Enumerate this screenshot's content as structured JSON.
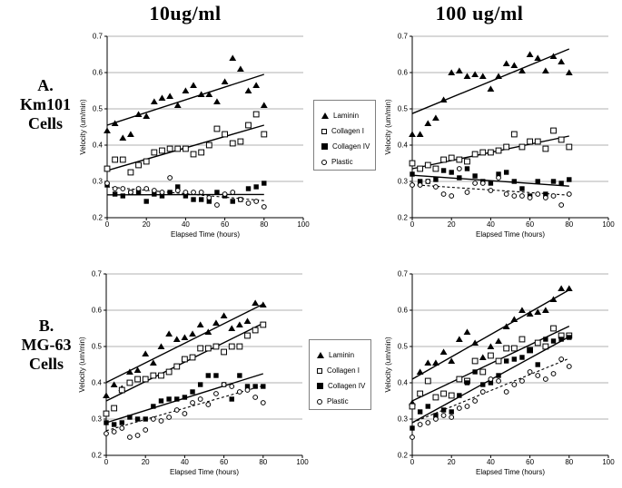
{
  "page": {
    "column_titles": [
      "10ug/ml",
      "100 ug/ml"
    ],
    "row_labels": [
      {
        "lines": [
          "A.",
          "Km101",
          "Cells"
        ]
      },
      {
        "lines": [
          "B.",
          "MG-63",
          "Cells"
        ]
      }
    ]
  },
  "legend": {
    "items": [
      {
        "label": "Laminin",
        "marker": "filled-triangle"
      },
      {
        "label": "Collagen I",
        "marker": "open-square"
      },
      {
        "label": "Collagen IV",
        "marker": "filled-square"
      },
      {
        "label": "Plastic",
        "marker": "open-circle"
      }
    ]
  },
  "chart_data": [
    {
      "id": "km101-10ugml",
      "type": "scatter",
      "cell_line": "Km101",
      "concentration": "10ug/ml",
      "xlabel": "Elapsed Time (hours)",
      "ylabel": "Velocity (um/min)",
      "xlim": [
        0,
        100
      ],
      "ylim": [
        0.2,
        0.7
      ],
      "xticks": [
        0,
        20,
        40,
        60,
        80,
        100
      ],
      "yticks": [
        0.2,
        0.3,
        0.4,
        0.5,
        0.6,
        0.7
      ],
      "x": [
        0,
        4,
        8,
        12,
        16,
        20,
        24,
        28,
        32,
        36,
        40,
        44,
        48,
        52,
        56,
        60,
        64,
        68,
        72,
        76,
        80
      ],
      "series": [
        {
          "name": "Laminin",
          "marker": "filled-triangle",
          "trend": {
            "style": "solid",
            "x": [
              0,
              80
            ],
            "y": [
              0.455,
              0.595
            ]
          },
          "values": [
            0.44,
            0.46,
            0.42,
            0.43,
            0.485,
            0.48,
            0.52,
            0.53,
            0.535,
            0.51,
            0.55,
            0.565,
            0.54,
            0.54,
            0.52,
            0.575,
            0.64,
            0.61,
            0.55,
            0.565,
            0.51
          ]
        },
        {
          "name": "Collagen I",
          "marker": "open-square",
          "trend": {
            "style": "solid",
            "x": [
              0,
              80
            ],
            "y": [
              0.33,
              0.455
            ]
          },
          "values": [
            0.335,
            0.36,
            0.36,
            0.325,
            0.345,
            0.355,
            0.38,
            0.385,
            0.39,
            0.39,
            0.39,
            0.375,
            0.38,
            0.4,
            0.445,
            0.43,
            0.405,
            0.41,
            0.455,
            0.485,
            0.43
          ]
        },
        {
          "name": "Collagen IV",
          "marker": "filled-square",
          "trend": {
            "style": "solid",
            "x": [
              0,
              80
            ],
            "y": [
              0.263,
              0.264
            ]
          },
          "values": [
            0.29,
            0.265,
            0.26,
            0.27,
            0.27,
            0.245,
            0.265,
            0.26,
            0.27,
            0.285,
            0.26,
            0.25,
            0.25,
            0.245,
            0.27,
            0.26,
            0.245,
            0.25,
            0.28,
            0.285,
            0.295
          ]
        },
        {
          "name": "Plastic",
          "marker": "open-circle",
          "trend": {
            "style": "dashed",
            "x": [
              0,
              80
            ],
            "y": [
              0.285,
              0.247
            ]
          },
          "values": [
            0.295,
            0.28,
            0.28,
            0.27,
            0.28,
            0.28,
            0.275,
            0.27,
            0.31,
            0.275,
            0.27,
            0.27,
            0.27,
            0.255,
            0.235,
            0.265,
            0.27,
            0.25,
            0.24,
            0.245,
            0.23
          ]
        }
      ]
    },
    {
      "id": "km101-100ugml",
      "type": "scatter",
      "cell_line": "Km101",
      "concentration": "100 ug/ml",
      "xlabel": "Elapsed Time (hours)",
      "ylabel": "Velocity (um/min)",
      "xlim": [
        0,
        100
      ],
      "ylim": [
        0.2,
        0.7
      ],
      "xticks": [
        0,
        20,
        40,
        60,
        80,
        100
      ],
      "yticks": [
        0.2,
        0.3,
        0.4,
        0.5,
        0.6,
        0.7
      ],
      "x": [
        0,
        4,
        8,
        12,
        16,
        20,
        24,
        28,
        32,
        36,
        40,
        44,
        48,
        52,
        56,
        60,
        64,
        68,
        72,
        76,
        80
      ],
      "series": [
        {
          "name": "Laminin",
          "marker": "filled-triangle",
          "trend": {
            "style": "solid",
            "x": [
              0,
              80
            ],
            "y": [
              0.487,
              0.665
            ]
          },
          "values": [
            0.43,
            0.43,
            0.46,
            0.475,
            0.525,
            0.6,
            0.605,
            0.59,
            0.595,
            0.59,
            0.555,
            0.59,
            0.625,
            0.62,
            0.605,
            0.65,
            0.64,
            0.605,
            0.645,
            0.63,
            0.6
          ]
        },
        {
          "name": "Collagen I",
          "marker": "open-square",
          "trend": {
            "style": "solid",
            "x": [
              0,
              80
            ],
            "y": [
              0.335,
              0.425
            ]
          },
          "values": [
            0.35,
            0.335,
            0.345,
            0.335,
            0.36,
            0.365,
            0.36,
            0.355,
            0.375,
            0.38,
            0.38,
            0.385,
            0.395,
            0.43,
            0.395,
            0.41,
            0.41,
            0.39,
            0.44,
            0.415,
            0.395
          ]
        },
        {
          "name": "Collagen IV",
          "marker": "filled-square",
          "trend": {
            "style": "solid",
            "x": [
              0,
              80
            ],
            "y": [
              0.317,
              0.287
            ]
          },
          "values": [
            0.32,
            0.3,
            0.3,
            0.305,
            0.33,
            0.325,
            0.31,
            0.335,
            0.315,
            0.3,
            0.295,
            0.32,
            0.325,
            0.3,
            0.28,
            0.26,
            0.3,
            0.265,
            0.3,
            0.295,
            0.305
          ]
        },
        {
          "name": "Plastic",
          "marker": "open-circle",
          "trend": {
            "style": "dashed",
            "x": [
              0,
              80
            ],
            "y": [
              0.291,
              0.262
            ]
          },
          "values": [
            0.29,
            0.29,
            0.3,
            0.285,
            0.265,
            0.26,
            0.335,
            0.27,
            0.295,
            0.295,
            0.275,
            0.31,
            0.265,
            0.26,
            0.26,
            0.255,
            0.265,
            0.255,
            0.26,
            0.235,
            0.265
          ]
        }
      ]
    },
    {
      "id": "mg63-10ugml",
      "type": "scatter",
      "cell_line": "MG-63",
      "concentration": "10ug/ml",
      "xlabel": "Elapsed Time (hours)",
      "ylabel": "Velocity (um/min)",
      "xlim": [
        0,
        100
      ],
      "ylim": [
        0.2,
        0.7
      ],
      "xticks": [
        0,
        20,
        40,
        60,
        80,
        100
      ],
      "yticks": [
        0.2,
        0.3,
        0.4,
        0.5,
        0.6,
        0.7
      ],
      "x": [
        0,
        4,
        8,
        12,
        16,
        20,
        24,
        28,
        32,
        36,
        40,
        44,
        48,
        52,
        56,
        60,
        64,
        68,
        72,
        76,
        80
      ],
      "series": [
        {
          "name": "Laminin",
          "marker": "filled-triangle",
          "trend": {
            "style": "solid",
            "x": [
              0,
              80
            ],
            "y": [
              0.401,
              0.617
            ]
          },
          "values": [
            0.365,
            0.395,
            0.385,
            0.43,
            0.435,
            0.48,
            0.455,
            0.5,
            0.535,
            0.52,
            0.525,
            0.535,
            0.56,
            0.54,
            0.565,
            0.585,
            0.55,
            0.56,
            0.57,
            0.62,
            0.615
          ]
        },
        {
          "name": "Collagen I",
          "marker": "open-square",
          "trend": {
            "style": "solid",
            "x": [
              0,
              80
            ],
            "y": [
              0.35,
              0.564
            ]
          },
          "values": [
            0.315,
            0.33,
            0.38,
            0.4,
            0.41,
            0.41,
            0.42,
            0.42,
            0.43,
            0.445,
            0.465,
            0.47,
            0.495,
            0.495,
            0.5,
            0.485,
            0.5,
            0.5,
            0.53,
            0.545,
            0.56
          ]
        },
        {
          "name": "Collagen IV",
          "marker": "filled-square",
          "trend": {
            "style": "solid",
            "x": [
              0,
              80
            ],
            "y": [
              0.29,
              0.425
            ]
          },
          "values": [
            0.29,
            0.285,
            0.29,
            0.305,
            0.3,
            0.3,
            0.335,
            0.35,
            0.355,
            0.355,
            0.36,
            0.375,
            0.395,
            0.42,
            0.42,
            0.395,
            0.355,
            0.42,
            0.39,
            0.39,
            0.39
          ]
        },
        {
          "name": "Plastic",
          "marker": "open-circle",
          "trend": {
            "style": "dashed",
            "x": [
              0,
              80
            ],
            "y": [
              0.268,
              0.392
            ]
          },
          "values": [
            0.26,
            0.265,
            0.275,
            0.25,
            0.255,
            0.27,
            0.3,
            0.295,
            0.305,
            0.325,
            0.315,
            0.345,
            0.355,
            0.34,
            0.37,
            0.395,
            0.39,
            0.375,
            0.38,
            0.36,
            0.345
          ]
        }
      ]
    },
    {
      "id": "mg63-100ugml",
      "type": "scatter",
      "cell_line": "MG-63",
      "concentration": "100 ug/ml",
      "xlabel": "Elapsed Time (hours)",
      "ylabel": "Velocity (um/min)",
      "xlim": [
        0,
        100
      ],
      "ylim": [
        0.2,
        0.7
      ],
      "xticks": [
        0,
        20,
        40,
        60,
        80,
        100
      ],
      "yticks": [
        0.2,
        0.3,
        0.4,
        0.5,
        0.6,
        0.7
      ],
      "x": [
        0,
        4,
        8,
        12,
        16,
        20,
        24,
        28,
        32,
        36,
        40,
        44,
        48,
        52,
        56,
        60,
        64,
        68,
        72,
        76,
        80
      ],
      "series": [
        {
          "name": "Laminin",
          "marker": "filled-triangle",
          "trend": {
            "style": "solid",
            "x": [
              0,
              80
            ],
            "y": [
              0.41,
              0.656
            ]
          },
          "values": [
            0.345,
            0.43,
            0.455,
            0.455,
            0.485,
            0.46,
            0.52,
            0.54,
            0.51,
            0.47,
            0.5,
            0.515,
            0.555,
            0.575,
            0.6,
            0.59,
            0.595,
            0.6,
            0.63,
            0.66,
            0.66
          ]
        },
        {
          "name": "Collagen I",
          "marker": "open-square",
          "trend": {
            "style": "solid",
            "x": [
              0,
              80
            ],
            "y": [
              0.35,
              0.556
            ]
          },
          "values": [
            0.335,
            0.37,
            0.405,
            0.36,
            0.37,
            0.365,
            0.41,
            0.405,
            0.46,
            0.43,
            0.475,
            0.46,
            0.495,
            0.495,
            0.52,
            0.49,
            0.51,
            0.5,
            0.55,
            0.53,
            0.53
          ]
        },
        {
          "name": "Collagen IV",
          "marker": "filled-square",
          "trend": {
            "style": "solid",
            "x": [
              0,
              80
            ],
            "y": [
              0.29,
              0.527
            ]
          },
          "values": [
            0.275,
            0.32,
            0.335,
            0.31,
            0.325,
            0.32,
            0.365,
            0.4,
            0.43,
            0.395,
            0.4,
            0.42,
            0.46,
            0.465,
            0.47,
            0.49,
            0.45,
            0.52,
            0.515,
            0.52,
            0.525
          ]
        },
        {
          "name": "Plastic",
          "marker": "open-circle",
          "trend": {
            "style": "dashed",
            "x": [
              0,
              80
            ],
            "y": [
              0.29,
              0.467
            ]
          },
          "values": [
            0.25,
            0.285,
            0.29,
            0.3,
            0.31,
            0.305,
            0.33,
            0.335,
            0.35,
            0.375,
            0.41,
            0.405,
            0.375,
            0.395,
            0.405,
            0.43,
            0.42,
            0.41,
            0.425,
            0.465,
            0.445
          ]
        }
      ]
    }
  ]
}
